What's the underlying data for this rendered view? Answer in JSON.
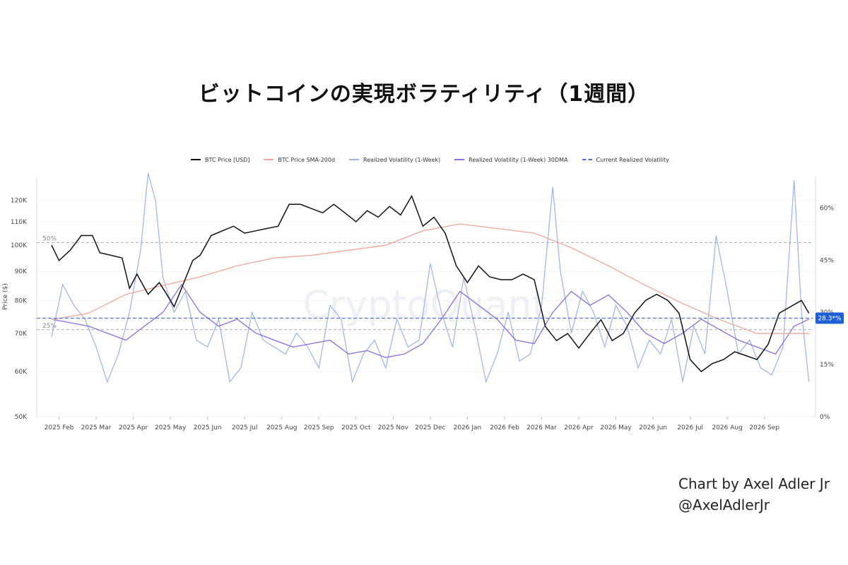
{
  "title": "ビットコインの実現ボラティリティ（1週間）",
  "credit": {
    "line1": "Chart by Axel Adler Jr",
    "line2": "@AxelAdlerJr"
  },
  "chart_data": {
    "type": "line",
    "watermark": "CryptoQuant",
    "ylabel": "Price ($)",
    "legend": [
      {
        "name": "BTC Price [USD]",
        "color": "#111111",
        "style": "solid"
      },
      {
        "name": "BTC Price SMA-200d",
        "color": "#f0a59a",
        "style": "solid"
      },
      {
        "name": "Realized Volatility (1-Week)",
        "color": "#9bb3e6",
        "style": "solid"
      },
      {
        "name": "Realized Volatility (1-Week) 30DMA",
        "color": "#8a6fe0",
        "style": "solid"
      },
      {
        "name": "Current Realized Volatility",
        "color": "#4a6fd1",
        "style": "dashed"
      }
    ],
    "left_axis": {
      "scale": "log",
      "ticks": [
        "50K",
        "60K",
        "70K",
        "80K",
        "90K",
        "100K",
        "110K",
        "120K"
      ],
      "tick_values": [
        50000,
        60000,
        70000,
        80000,
        90000,
        100000,
        110000,
        120000
      ]
    },
    "right_axis": {
      "ticks": [
        "0%",
        "15%",
        "30%",
        "45%",
        "60%"
      ],
      "tick_values": [
        0,
        15,
        30,
        45,
        60
      ],
      "ylim": [
        0,
        69
      ]
    },
    "x_ticks": [
      "2025 Feb",
      "2025 Mar",
      "2025 Apr",
      "2025 May",
      "2025 Jun",
      "2025 Jul",
      "2025 Aug",
      "2025 Sep",
      "2025 Oct",
      "2025 Nov",
      "2025 Dec",
      "2026 Jan",
      "2026 Feb",
      "2026 Mar",
      "2026 Apr",
      "2026 May",
      "2026 Jun",
      "2026 Jul",
      "2026 Aug",
      "2026 Sep"
    ],
    "x_range_months": [
      0,
      20.5
    ],
    "thresholds": [
      {
        "label": "50%",
        "value": 50
      },
      {
        "label": "25%",
        "value": 25
      }
    ],
    "current_vol": {
      "label": "28.3*%",
      "value": 28.3
    },
    "price_series": [
      [
        0,
        100000
      ],
      [
        0.2,
        94000
      ],
      [
        0.5,
        98000
      ],
      [
        0.8,
        104000
      ],
      [
        1.1,
        104000
      ],
      [
        1.3,
        97000
      ],
      [
        1.6,
        96000
      ],
      [
        1.9,
        95000
      ],
      [
        2.1,
        84000
      ],
      [
        2.3,
        89000
      ],
      [
        2.6,
        82000
      ],
      [
        2.9,
        86000
      ],
      [
        3.1,
        82000
      ],
      [
        3.3,
        78000
      ],
      [
        3.5,
        84000
      ],
      [
        3.8,
        94000
      ],
      [
        4.0,
        96000
      ],
      [
        4.3,
        104000
      ],
      [
        4.6,
        106000
      ],
      [
        4.9,
        108000
      ],
      [
        5.2,
        105000
      ],
      [
        5.5,
        106000
      ],
      [
        5.8,
        107000
      ],
      [
        6.1,
        108000
      ],
      [
        6.4,
        118000
      ],
      [
        6.7,
        118000
      ],
      [
        7.0,
        116000
      ],
      [
        7.3,
        114000
      ],
      [
        7.6,
        118000
      ],
      [
        7.9,
        114000
      ],
      [
        8.2,
        110000
      ],
      [
        8.5,
        115000
      ],
      [
        8.8,
        112000
      ],
      [
        9.1,
        117000
      ],
      [
        9.4,
        113000
      ],
      [
        9.7,
        122000
      ],
      [
        10.0,
        108000
      ],
      [
        10.3,
        112000
      ],
      [
        10.6,
        105000
      ],
      [
        10.9,
        92000
      ],
      [
        11.2,
        86000
      ],
      [
        11.5,
        92000
      ],
      [
        11.8,
        88000
      ],
      [
        12.1,
        87000
      ],
      [
        12.4,
        87000
      ],
      [
        12.7,
        89000
      ],
      [
        13.0,
        87000
      ],
      [
        13.3,
        72000
      ],
      [
        13.6,
        68000
      ],
      [
        13.9,
        70000
      ],
      [
        14.2,
        66000
      ],
      [
        14.5,
        70000
      ],
      [
        14.8,
        74000
      ],
      [
        15.1,
        68000
      ],
      [
        15.4,
        70000
      ],
      [
        15.7,
        76000
      ],
      [
        16.0,
        80000
      ],
      [
        16.3,
        82000
      ],
      [
        16.6,
        80000
      ],
      [
        16.9,
        76000
      ],
      [
        17.2,
        63000
      ],
      [
        17.5,
        60000
      ],
      [
        17.8,
        62000
      ],
      [
        18.1,
        63000
      ],
      [
        18.4,
        65000
      ],
      [
        18.7,
        64000
      ],
      [
        19.0,
        63000
      ],
      [
        19.3,
        67000
      ],
      [
        19.6,
        76000
      ],
      [
        19.9,
        78000
      ],
      [
        20.2,
        80000
      ],
      [
        20.4,
        76000
      ]
    ],
    "sma_series": [
      [
        0,
        74000
      ],
      [
        1,
        76000
      ],
      [
        2,
        82000
      ],
      [
        3,
        85000
      ],
      [
        4,
        88000
      ],
      [
        5,
        92000
      ],
      [
        6,
        95000
      ],
      [
        7,
        96000
      ],
      [
        8,
        98000
      ],
      [
        9,
        100000
      ],
      [
        10,
        106000
      ],
      [
        11,
        109000
      ],
      [
        12,
        107000
      ],
      [
        13,
        105000
      ],
      [
        14,
        99000
      ],
      [
        15,
        92000
      ],
      [
        16,
        85000
      ],
      [
        17,
        79000
      ],
      [
        18,
        74000
      ],
      [
        19,
        70000
      ],
      [
        20.4,
        70000
      ]
    ],
    "vol_series": [
      [
        0,
        23
      ],
      [
        0.3,
        38
      ],
      [
        0.6,
        32
      ],
      [
        0.9,
        28
      ],
      [
        1.2,
        20
      ],
      [
        1.5,
        10
      ],
      [
        1.8,
        18
      ],
      [
        2.1,
        30
      ],
      [
        2.4,
        48
      ],
      [
        2.6,
        70
      ],
      [
        2.8,
        62
      ],
      [
        3.0,
        40
      ],
      [
        3.3,
        30
      ],
      [
        3.6,
        36
      ],
      [
        3.9,
        22
      ],
      [
        4.2,
        20
      ],
      [
        4.5,
        28
      ],
      [
        4.8,
        10
      ],
      [
        5.1,
        14
      ],
      [
        5.4,
        30
      ],
      [
        5.7,
        22
      ],
      [
        6.0,
        20
      ],
      [
        6.3,
        18
      ],
      [
        6.6,
        24
      ],
      [
        6.9,
        20
      ],
      [
        7.2,
        14
      ],
      [
        7.5,
        32
      ],
      [
        7.8,
        28
      ],
      [
        8.1,
        10
      ],
      [
        8.4,
        18
      ],
      [
        8.7,
        22
      ],
      [
        9.0,
        14
      ],
      [
        9.3,
        28
      ],
      [
        9.6,
        20
      ],
      [
        9.9,
        22
      ],
      [
        10.2,
        44
      ],
      [
        10.5,
        30
      ],
      [
        10.8,
        20
      ],
      [
        11.1,
        40
      ],
      [
        11.4,
        26
      ],
      [
        11.7,
        10
      ],
      [
        12.0,
        18
      ],
      [
        12.3,
        30
      ],
      [
        12.6,
        16
      ],
      [
        12.9,
        18
      ],
      [
        13.2,
        32
      ],
      [
        13.5,
        66
      ],
      [
        13.7,
        42
      ],
      [
        14.0,
        24
      ],
      [
        14.3,
        36
      ],
      [
        14.6,
        30
      ],
      [
        14.9,
        20
      ],
      [
        15.2,
        32
      ],
      [
        15.5,
        26
      ],
      [
        15.8,
        14
      ],
      [
        16.1,
        22
      ],
      [
        16.4,
        18
      ],
      [
        16.7,
        28
      ],
      [
        17.0,
        10
      ],
      [
        17.3,
        26
      ],
      [
        17.6,
        18
      ],
      [
        17.9,
        52
      ],
      [
        18.2,
        36
      ],
      [
        18.5,
        18
      ],
      [
        18.8,
        22
      ],
      [
        19.1,
        14
      ],
      [
        19.4,
        12
      ],
      [
        19.7,
        20
      ],
      [
        20.0,
        68
      ],
      [
        20.2,
        30
      ],
      [
        20.4,
        10
      ]
    ],
    "vol_30dma_series": [
      [
        0,
        28
      ],
      [
        1,
        26
      ],
      [
        2,
        22
      ],
      [
        3,
        30
      ],
      [
        3.5,
        38
      ],
      [
        4,
        30
      ],
      [
        4.5,
        26
      ],
      [
        5,
        28
      ],
      [
        5.5,
        24
      ],
      [
        6,
        22
      ],
      [
        6.5,
        20
      ],
      [
        7,
        21
      ],
      [
        7.5,
        22
      ],
      [
        8,
        18
      ],
      [
        8.5,
        19
      ],
      [
        9,
        17
      ],
      [
        9.5,
        18
      ],
      [
        10,
        21
      ],
      [
        10.5,
        28
      ],
      [
        11,
        36
      ],
      [
        11.5,
        32
      ],
      [
        12,
        28
      ],
      [
        12.5,
        22
      ],
      [
        13,
        21
      ],
      [
        13.5,
        30
      ],
      [
        14,
        36
      ],
      [
        14.5,
        32
      ],
      [
        15,
        35
      ],
      [
        15.5,
        30
      ],
      [
        16,
        24
      ],
      [
        16.5,
        21
      ],
      [
        17,
        24
      ],
      [
        17.5,
        28
      ],
      [
        18,
        25
      ],
      [
        18.5,
        22
      ],
      [
        19,
        20
      ],
      [
        19.5,
        18
      ],
      [
        20,
        26
      ],
      [
        20.4,
        28
      ]
    ]
  }
}
